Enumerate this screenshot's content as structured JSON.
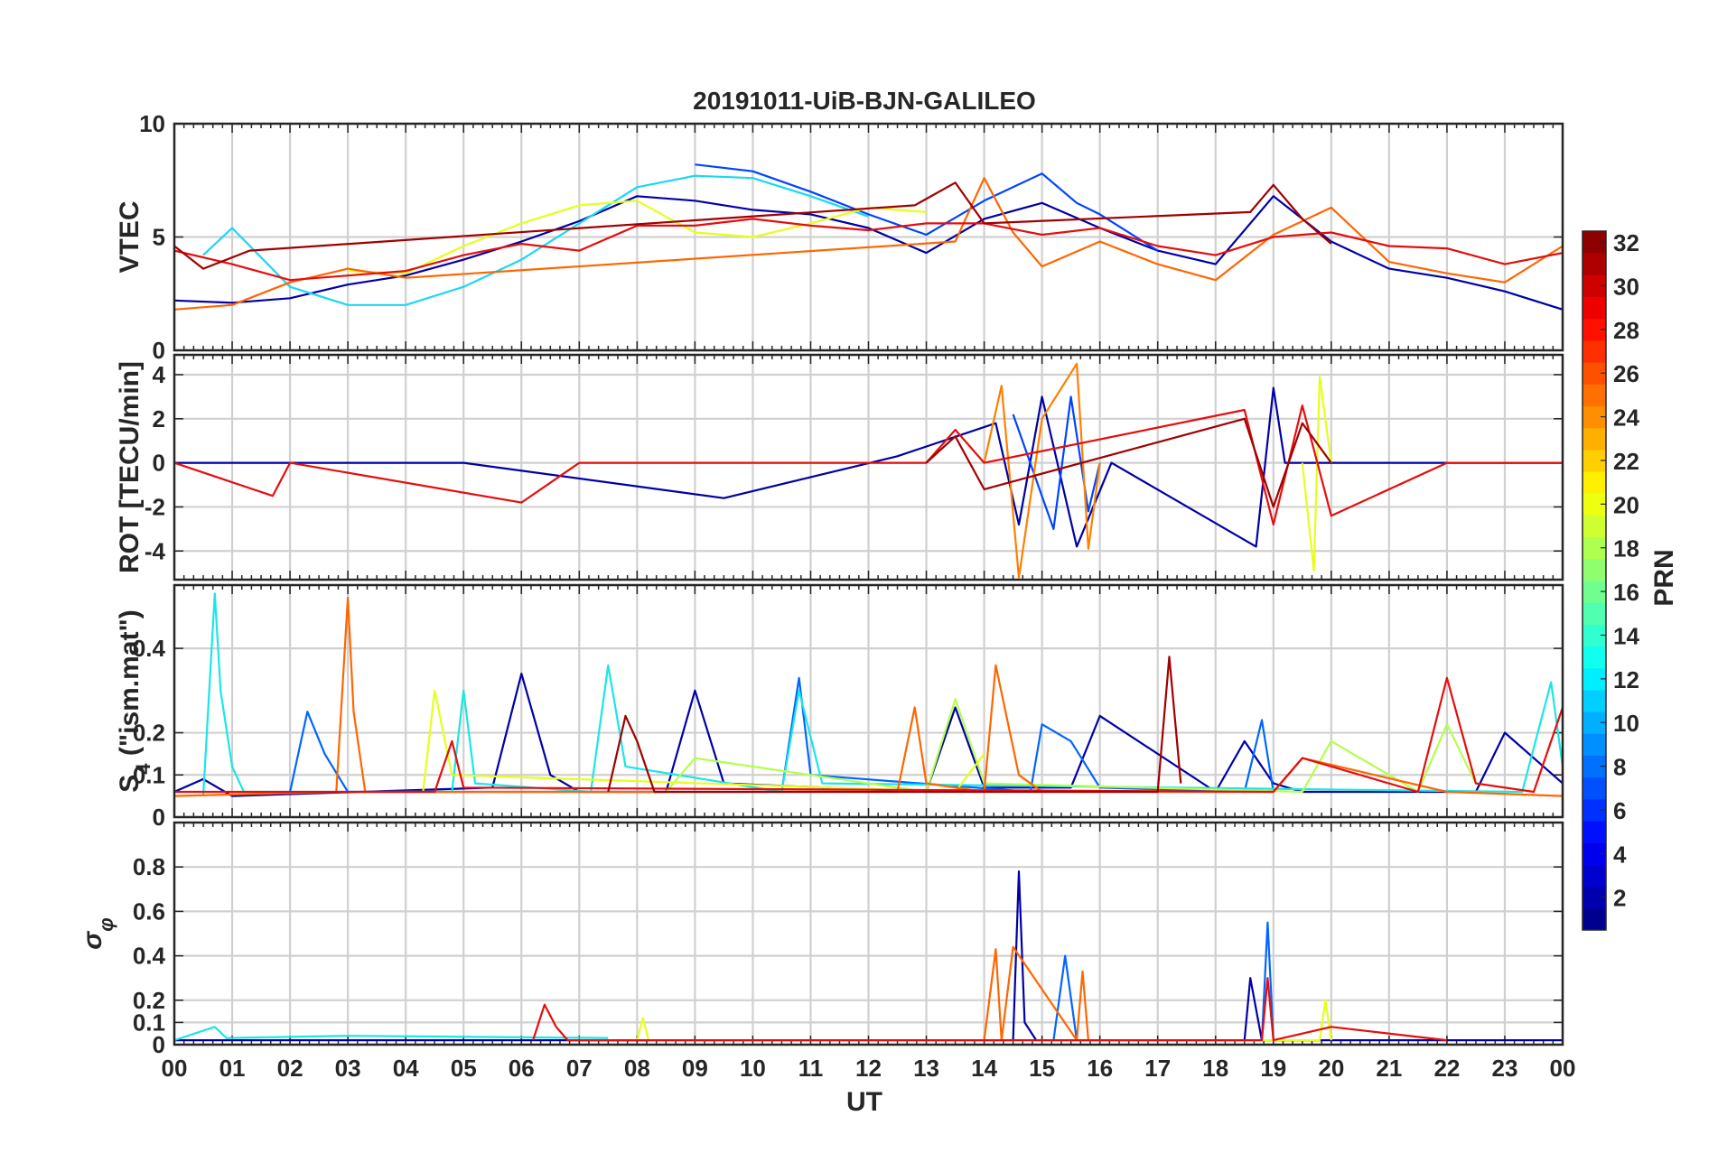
{
  "chart_data": {
    "type": "line",
    "title": "20191011-UiB-BJN-GALILEO",
    "xlabel": "UT",
    "x_ticks": [
      "00",
      "01",
      "02",
      "03",
      "04",
      "05",
      "06",
      "07",
      "08",
      "09",
      "10",
      "11",
      "12",
      "13",
      "14",
      "15",
      "16",
      "17",
      "18",
      "19",
      "20",
      "21",
      "22",
      "23",
      "00"
    ],
    "xlim": [
      0,
      24
    ],
    "grid": true,
    "colorbar": {
      "label": "PRN",
      "range": [
        1,
        32
      ],
      "ticks": [
        "2",
        "4",
        "6",
        "8",
        "10",
        "12",
        "14",
        "16",
        "18",
        "20",
        "22",
        "24",
        "26",
        "28",
        "30",
        "32"
      ],
      "colormap": "jet",
      "placement": "right"
    },
    "panels": [
      {
        "ylabel": "VTEC",
        "ylim": [
          0,
          10
        ],
        "y_ticks": [
          "0",
          "5",
          "10"
        ],
        "series": [
          {
            "prn": 1,
            "color": "#0000a6",
            "x": [
              0,
              1,
              2,
              3,
              4,
              5,
              6,
              7,
              8,
              9,
              10,
              11,
              12,
              13,
              14,
              15,
              16,
              17,
              18,
              19,
              20,
              21,
              22,
              23,
              24
            ],
            "y": [
              2.2,
              2.1,
              2.3,
              2.9,
              3.3,
              4.0,
              4.8,
              5.7,
              6.8,
              6.6,
              6.2,
              6.0,
              5.4,
              4.3,
              5.8,
              6.5,
              5.4,
              4.4,
              3.8,
              6.8,
              4.8,
              3.6,
              3.2,
              2.6,
              1.8
            ]
          },
          {
            "prn": 5,
            "color": "#0044ff",
            "x": [
              9.0,
              10.0,
              11.0,
              12.0,
              13.0,
              14.0,
              15.0,
              15.6,
              16.0,
              17.0
            ],
            "y": [
              8.2,
              7.9,
              7.0,
              6.0,
              5.1,
              6.6,
              7.8,
              6.5,
              6.0,
              4.4
            ]
          },
          {
            "prn": 12,
            "color": "#1ad8f0",
            "x": [
              0.5,
              1.0,
              2.0,
              3.0,
              4.0,
              5.0,
              6.0,
              7.0,
              8.0,
              9.0,
              10.0,
              11.0,
              12.0
            ],
            "y": [
              4.2,
              5.4,
              2.8,
              2.0,
              2.0,
              2.8,
              4.0,
              5.6,
              7.2,
              7.7,
              7.6,
              6.8,
              5.9
            ]
          },
          {
            "prn": 19,
            "color": "#e6ff1a",
            "x": [
              3.0,
              4.0,
              5.0,
              6.0,
              7.0,
              8.0,
              9.0,
              10.0,
              11.0,
              12.0,
              13.0
            ],
            "y": [
              3.5,
              3.4,
              4.6,
              5.6,
              6.4,
              6.6,
              5.2,
              5.0,
              5.6,
              6.3,
              6.1
            ]
          },
          {
            "prn": 25,
            "color": "#ff6600",
            "x": [
              0,
              1,
              2,
              3,
              4,
              13.5,
              14,
              14.5,
              15,
              16,
              17,
              18,
              19,
              20,
              21,
              22,
              23,
              24
            ],
            "y": [
              1.8,
              2.0,
              3.0,
              3.6,
              3.2,
              4.8,
              7.6,
              5.2,
              3.7,
              4.8,
              3.8,
              3.1,
              5.1,
              6.3,
              3.9,
              3.4,
              3.0,
              4.6
            ]
          },
          {
            "prn": 29,
            "color": "#e60d0d",
            "x": [
              0,
              1,
              2,
              3,
              4,
              5,
              6,
              7,
              8,
              9,
              10,
              11,
              12,
              13,
              14,
              15,
              16,
              17,
              18,
              19,
              20,
              21,
              22,
              23,
              24
            ],
            "y": [
              4.4,
              3.8,
              3.1,
              3.3,
              3.5,
              4.2,
              4.7,
              4.4,
              5.5,
              5.5,
              5.8,
              5.5,
              5.3,
              5.6,
              5.6,
              5.1,
              5.4,
              4.6,
              4.2,
              5.0,
              5.2,
              4.6,
              4.5,
              3.8,
              4.3
            ]
          },
          {
            "prn": 31,
            "color": "#a00000",
            "x": [
              0,
              0.5,
              1.3,
              12.8,
              13.5,
              14.0,
              18.6,
              19.0,
              19.5,
              20.0
            ],
            "y": [
              4.6,
              3.6,
              4.4,
              6.4,
              7.4,
              5.6,
              6.1,
              7.3,
              5.8,
              4.7
            ]
          }
        ]
      },
      {
        "ylabel": "ROT [TECU/min]",
        "ylim": [
          -5.3,
          4.9
        ],
        "y_ticks": [
          "-4",
          "-2",
          "0",
          "2",
          "4"
        ],
        "series": [
          {
            "prn": 1,
            "color": "#0000a6",
            "x": [
              0,
              5,
              9.5,
              12.5,
              14.2,
              14.6,
              15.0,
              15.6,
              16.2,
              18.7,
              19.0,
              19.2,
              21,
              24
            ],
            "y": [
              0.0,
              0.0,
              -1.6,
              0.3,
              1.8,
              -2.8,
              3.0,
              -3.8,
              0.0,
              -3.8,
              3.4,
              0.0,
              0.0,
              0.0
            ]
          },
          {
            "prn": 5,
            "color": "#0044ff",
            "x": [
              14.5,
              15.2,
              15.5,
              15.8,
              16.0
            ],
            "y": [
              2.2,
              -3.0,
              3.0,
              -2.2,
              0.0
            ]
          },
          {
            "prn": 19,
            "color": "#e6ff1a",
            "x": [
              19.5,
              19.7,
              19.8,
              20.0
            ],
            "y": [
              0.0,
              -4.9,
              3.9,
              0.0
            ]
          },
          {
            "prn": 24,
            "color": "#ff8000",
            "x": [
              14.0,
              14.3,
              14.6,
              15.0,
              15.6,
              15.8,
              16.0
            ],
            "y": [
              0.0,
              3.5,
              -5.2,
              2.0,
              4.5,
              -3.9,
              0.0
            ]
          },
          {
            "prn": 29,
            "color": "#e60d0d",
            "x": [
              0,
              1.7,
              2.0,
              6.0,
              7.0,
              13.0,
              13.5,
              14.0,
              18.5,
              19.0,
              19.5,
              20.0,
              22.0,
              24
            ],
            "y": [
              0.0,
              -1.5,
              0.0,
              -1.8,
              0.0,
              0.0,
              1.5,
              0.0,
              2.4,
              -2.8,
              2.6,
              -2.4,
              0.0,
              0.0
            ]
          },
          {
            "prn": 31,
            "color": "#a00000",
            "x": [
              13.0,
              13.5,
              14.0,
              18.5,
              19.0,
              19.5,
              20.0
            ],
            "y": [
              0.0,
              1.2,
              -1.2,
              2.0,
              -2.0,
              1.8,
              0.0
            ]
          }
        ]
      },
      {
        "ylabel": "S",
        "ylabel_subscript": "4",
        "ylabel_suffix": " (\"ism.mat\")",
        "ylim": [
          0,
          0.55
        ],
        "y_ticks": [
          "0",
          "0.1",
          "0.2",
          "0.4"
        ],
        "series": [
          {
            "prn": 1,
            "color": "#0000a6",
            "x": [
              0,
              0.5,
              1.0,
              5.5,
              6.0,
              6.5,
              7.0,
              8.5,
              9.0,
              9.5,
              13.0,
              13.5,
              14.0,
              15.5,
              16.0,
              18.0,
              18.5,
              19.0,
              19.5,
              22.5,
              23.0,
              23.5,
              24.0
            ],
            "y": [
              0.06,
              0.09,
              0.05,
              0.07,
              0.34,
              0.1,
              0.06,
              0.06,
              0.3,
              0.08,
              0.06,
              0.26,
              0.07,
              0.07,
              0.24,
              0.06,
              0.18,
              0.08,
              0.06,
              0.06,
              0.2,
              0.14,
              0.08
            ]
          },
          {
            "prn": 6,
            "color": "#0066ff",
            "x": [
              2.0,
              2.3,
              2.6,
              3.0,
              10.5,
              10.8,
              11.0,
              14.8,
              15.0,
              15.5,
              16.0,
              18.5,
              18.8,
              19.0
            ],
            "y": [
              0.06,
              0.25,
              0.15,
              0.06,
              0.06,
              0.33,
              0.1,
              0.06,
              0.22,
              0.18,
              0.07,
              0.06,
              0.23,
              0.06
            ]
          },
          {
            "prn": 13,
            "color": "#1ae6e6",
            "x": [
              0.5,
              0.7,
              0.8,
              1.0,
              1.2,
              4.8,
              5.0,
              5.2,
              7.2,
              7.5,
              7.8,
              10.5,
              10.8,
              11.2,
              23.3,
              23.8,
              24.0
            ],
            "y": [
              0.05,
              0.53,
              0.3,
              0.12,
              0.06,
              0.06,
              0.3,
              0.08,
              0.06,
              0.36,
              0.12,
              0.06,
              0.3,
              0.08,
              0.06,
              0.32,
              0.12
            ]
          },
          {
            "prn": 18,
            "color": "#b3ff4d",
            "x": [
              8.5,
              9.0,
              13.0,
              13.5,
              14.0,
              19.5,
              20.0,
              21.5,
              22.0,
              22.5
            ],
            "y": [
              0.06,
              0.14,
              0.06,
              0.28,
              0.08,
              0.06,
              0.18,
              0.06,
              0.22,
              0.08
            ]
          },
          {
            "prn": 20,
            "color": "#e6ff1a",
            "x": [
              4.3,
              4.5,
              4.8,
              13.5,
              14.0
            ],
            "y": [
              0.06,
              0.3,
              0.1,
              0.06,
              0.15
            ]
          },
          {
            "prn": 25,
            "color": "#ff6600",
            "x": [
              0,
              2.8,
              3.0,
              3.1,
              3.3,
              12.5,
              12.8,
              13.0,
              14.0,
              14.2,
              14.6,
              15.0,
              19.0,
              19.5,
              22.0,
              24.0
            ],
            "y": [
              0.05,
              0.06,
              0.52,
              0.25,
              0.06,
              0.06,
              0.26,
              0.08,
              0.06,
              0.36,
              0.1,
              0.06,
              0.06,
              0.14,
              0.06,
              0.05
            ]
          },
          {
            "prn": 29,
            "color": "#e60d0d",
            "x": [
              0,
              4.5,
              4.8,
              5.0,
              19.0,
              19.5,
              21.5,
              22.0,
              22.5,
              23.5,
              24.0
            ],
            "y": [
              0.06,
              0.06,
              0.18,
              0.07,
              0.06,
              0.14,
              0.06,
              0.33,
              0.08,
              0.06,
              0.26
            ]
          },
          {
            "prn": 31,
            "color": "#a00000",
            "x": [
              7.5,
              7.8,
              8.0,
              8.3,
              17.0,
              17.2,
              17.4
            ],
            "y": [
              0.06,
              0.24,
              0.18,
              0.06,
              0.06,
              0.38,
              0.08
            ]
          }
        ]
      },
      {
        "ylabel": "σ",
        "ylabel_subscript": "φ",
        "ylim": [
          0,
          1.0
        ],
        "y_ticks": [
          "0",
          "0.1",
          "0.2",
          "0.4",
          "0.6",
          "0.8"
        ],
        "series": [
          {
            "prn": 1,
            "color": "#0000a6",
            "x": [
              0,
              14.5,
              14.6,
              14.7,
              14.9,
              18.5,
              18.6,
              18.8,
              24
            ],
            "y": [
              0.02,
              0.02,
              0.78,
              0.1,
              0.02,
              0.02,
              0.3,
              0.02,
              0.02
            ]
          },
          {
            "prn": 6,
            "color": "#0066ff",
            "x": [
              15.2,
              15.4,
              15.6,
              18.8,
              18.9,
              19.0
            ],
            "y": [
              0.02,
              0.4,
              0.02,
              0.02,
              0.55,
              0.02
            ]
          },
          {
            "prn": 13,
            "color": "#1ae6e6",
            "x": [
              0,
              0.7,
              0.9,
              3.0,
              7.5
            ],
            "y": [
              0.02,
              0.08,
              0.03,
              0.04,
              0.03
            ]
          },
          {
            "prn": 20,
            "color": "#e6ff1a",
            "x": [
              8.0,
              8.1,
              8.2,
              19.8,
              19.9,
              20.0
            ],
            "y": [
              0.02,
              0.12,
              0.02,
              0.02,
              0.2,
              0.02
            ]
          },
          {
            "prn": 25,
            "color": "#ff6600",
            "x": [
              14.0,
              14.2,
              14.3,
              14.5,
              15.6,
              15.7,
              15.8
            ],
            "y": [
              0.02,
              0.43,
              0.02,
              0.44,
              0.02,
              0.33,
              0.02
            ]
          },
          {
            "prn": 29,
            "color": "#e60d0d",
            "x": [
              6.2,
              6.4,
              6.6,
              6.8,
              18.8,
              18.9,
              19.0,
              20.0,
              22.0
            ],
            "y": [
              0.02,
              0.18,
              0.08,
              0.02,
              0.02,
              0.3,
              0.02,
              0.08,
              0.02
            ]
          }
        ]
      }
    ]
  }
}
